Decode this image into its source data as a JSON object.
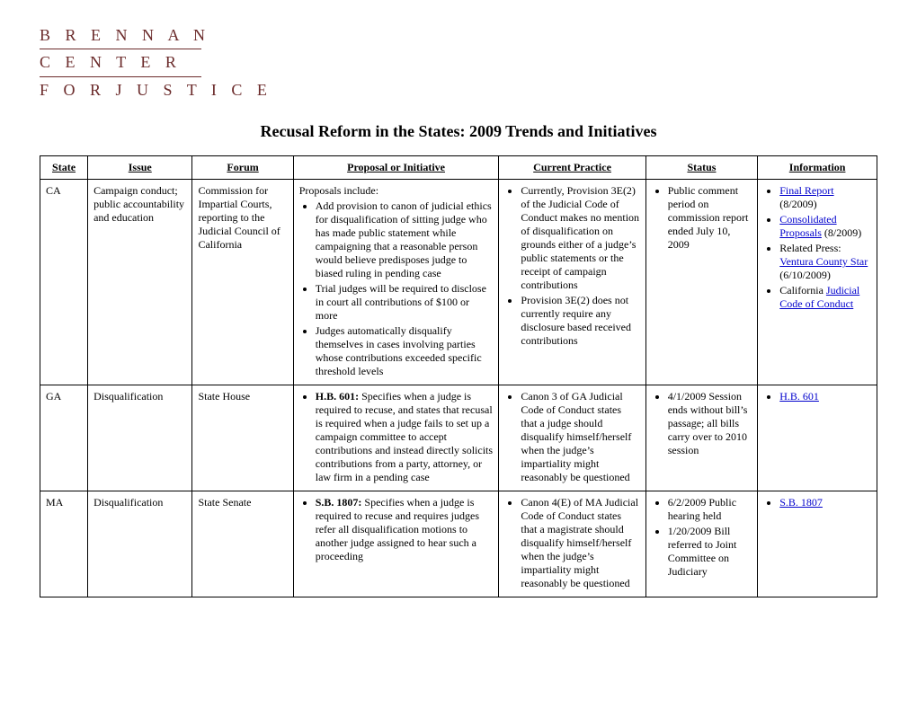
{
  "logo": {
    "line1": "B R E N N A N",
    "line2": "C E N T E R",
    "line3": "F O R  J U S T I C E",
    "color": "#6b2b2b"
  },
  "title": "Recusal Reform in the States: 2009 Trends and Initiatives",
  "columns": [
    "State",
    "Issue",
    "Forum",
    "Proposal or Initiative",
    "Current Practice",
    "Status",
    "Information"
  ],
  "rows": [
    {
      "state": "CA",
      "issue": "Campaign conduct; public accountability and education",
      "forum": "Commission for Impartial Courts, reporting to the Judicial Council of California",
      "proposal_intro": "Proposals include:",
      "proposal_items": [
        "Add provision to canon of judicial ethics for disqualification of sitting judge who has made public statement while campaigning that a reasonable person would believe predisposes judge to biased ruling in pending case",
        "Trial judges will be required to disclose in court all contributions of $100 or more",
        "Judges automatically disqualify themselves in cases involving parties whose contributions exceeded specific threshold levels"
      ],
      "practice_items": [
        "Currently, Provision 3E(2) of the Judicial Code of Conduct makes no mention of disqualification on grounds either of a judge’s public statements or the receipt of campaign contributions",
        "Provision 3E(2) does not currently require any disclosure based received contributions"
      ],
      "status_items": [
        "Public comment period on commission report ended July 10, 2009"
      ],
      "info_items": [
        {
          "pre": "",
          "link": "Final Report",
          "post": " (8/2009)"
        },
        {
          "pre": "",
          "link": "Consolidated Proposals",
          "post": " (8/2009)"
        },
        {
          "pre": "Related Press: ",
          "link": "Ventura County Star",
          "post": " (6/10/2009)"
        },
        {
          "pre": "California ",
          "link": "Judicial Code of Conduct",
          "post": ""
        }
      ]
    },
    {
      "state": "GA",
      "issue": "Disqualification",
      "forum": "State House",
      "proposal_bold": "H.B. 601:",
      "proposal_text": " Specifies when a judge is required to recuse, and states that recusal is required when a judge fails to set up a campaign committee to accept contributions and instead directly solicits contributions from a party, attorney, or law firm in a pending case",
      "practice_items": [
        "Canon 3 of GA Judicial Code of Conduct states that a judge should disqualify himself/herself when the judge’s impartiality might reasonably be questioned"
      ],
      "status_items": [
        "4/1/2009 Session ends without bill’s passage; all bills carry over to 2010 session"
      ],
      "info_items": [
        {
          "pre": "",
          "link": "H.B. 601",
          "post": ""
        }
      ]
    },
    {
      "state": "MA",
      "issue": "Disqualification",
      "forum": "State Senate",
      "proposal_bold": "S.B. 1807:",
      "proposal_text": " Specifies when a judge is required to recuse and requires judges refer all disqualification motions to another judge assigned to hear such a proceeding",
      "practice_items": [
        "Canon 4(E) of MA Judicial Code of Conduct states that a magistrate should disqualify himself/herself when the judge’s impartiality might reasonably be questioned"
      ],
      "status_items": [
        "6/2/2009 Public hearing held",
        "1/20/2009 Bill referred to Joint Committee on Judiciary"
      ],
      "info_items": [
        {
          "pre": "",
          "link": "S.B. 1807",
          "post": ""
        }
      ]
    }
  ]
}
